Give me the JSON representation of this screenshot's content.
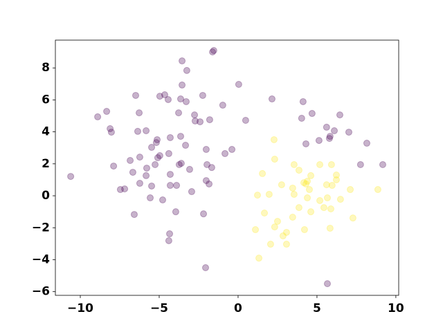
{
  "chart_data": {
    "type": "scatter",
    "opacity": 0.3,
    "xlim": [
      -11.58,
      10.18
    ],
    "ylim": [
      -6.23,
      9.74
    ],
    "xticks": [
      {
        "value": -10,
        "label": "−10"
      },
      {
        "value": -5,
        "label": "−5"
      },
      0,
      5,
      10
    ],
    "yticks": [
      {
        "value": -6,
        "label": "−6"
      },
      {
        "value": -4,
        "label": "−4"
      },
      {
        "value": -2,
        "label": "−2"
      },
      0,
      2,
      4,
      6,
      8
    ],
    "series": [
      {
        "color": "#440154",
        "x": [
          -10.61,
          -2.06,
          5.66,
          -1.62,
          -1.54,
          -3.55,
          -3.25,
          0.04,
          -3.55,
          -6.49,
          -4.96,
          -4.65,
          -4.43,
          -3.64,
          -3.29,
          -2.24,
          -0.97,
          2.15,
          4.12,
          -8.9,
          -8.33,
          -6.27,
          -3.77,
          -2.76,
          -2.72,
          -2.41,
          -1.8,
          0.48,
          4.69,
          6.45,
          4.03,
          5.61,
          6.1,
          7.02,
          5.83,
          5.79,
          5.13,
          4.3,
          8.16,
          -8.11,
          -8.03,
          -6.36,
          -5.83,
          -5.13,
          -4.3,
          -3.64,
          -5.18,
          -5.48,
          -3.33,
          -2.02,
          -0.39,
          -0.83,
          -4.39,
          -4.96,
          -5.09,
          -6.23,
          -6.84,
          -7.89,
          -5.79,
          -5.26,
          -3.73,
          -3.6,
          -3.07,
          -1.97,
          -1.67,
          -6.67,
          -5.83,
          -4.3,
          -2.02,
          -1.84,
          -6.23,
          -7.19,
          -7.46,
          -5.48,
          -4.3,
          -3.9,
          -2.94,
          -5.57,
          -4.78,
          -3.95,
          -2.19,
          -6.58,
          -4.34,
          -4.39,
          7.76,
          9.17
        ],
        "y": [
          1.21,
          -4.5,
          -5.5,
          9.0,
          9.09,
          8.44,
          7.84,
          6.97,
          6.93,
          6.28,
          6.23,
          6.32,
          6.02,
          6.06,
          5.89,
          6.28,
          5.67,
          6.06,
          5.89,
          4.94,
          5.28,
          5.19,
          5.19,
          5.06,
          4.68,
          4.63,
          4.76,
          4.72,
          5.15,
          5.06,
          4.85,
          4.29,
          4.07,
          3.98,
          3.72,
          3.59,
          3.46,
          3.25,
          3.29,
          4.2,
          3.98,
          4.03,
          4.07,
          3.51,
          3.64,
          3.72,
          3.33,
          3.03,
          3.16,
          2.9,
          2.9,
          2.64,
          2.64,
          2.51,
          2.38,
          2.42,
          2.21,
          1.86,
          1.73,
          1.95,
          1.95,
          2.03,
          1.65,
          1.95,
          1.77,
          1.47,
          1.26,
          1.34,
          0.95,
          0.74,
          0.78,
          0.43,
          0.39,
          0.61,
          0.65,
          0.65,
          0.26,
          -0.13,
          -0.26,
          -1.0,
          -1.13,
          -1.17,
          -2.38,
          -2.81,
          1.95,
          1.95
        ]
      },
      {
        "color": "#fde725",
        "x": [
          2.28,
          2.32,
          1.54,
          3.55,
          3.86,
          5.18,
          5.92,
          4.61,
          6.23,
          6.23,
          4.17,
          4.3,
          4.39,
          3.46,
          2.76,
          5.61,
          5.96,
          7.11,
          8.86,
          4.52,
          1.23,
          1.97,
          3.55,
          4.39,
          5.18,
          5.66,
          6.49,
          5.44,
          5.88,
          3.86,
          4.61,
          1.67,
          3.46,
          7.28,
          2.5,
          2.32,
          1.1,
          4.21,
          5.83,
          3.07,
          2.85,
          2.06,
          3.07,
          1.32
        ],
        "y": [
          3.51,
          2.29,
          1.39,
          1.95,
          1.6,
          1.95,
          1.95,
          1.26,
          1.3,
          1.0,
          0.82,
          0.74,
          0.91,
          0.48,
          0.69,
          0.69,
          0.65,
          0.39,
          0.39,
          0.39,
          0.04,
          0.09,
          0.09,
          -0.13,
          -0.3,
          -0.13,
          -0.22,
          -0.74,
          -0.82,
          -0.74,
          -1.0,
          -1.08,
          -1.34,
          -1.39,
          -1.6,
          -1.95,
          -2.12,
          -2.12,
          -2.03,
          -2.29,
          -2.51,
          -3.03,
          -3.03,
          -3.9
        ]
      }
    ]
  }
}
